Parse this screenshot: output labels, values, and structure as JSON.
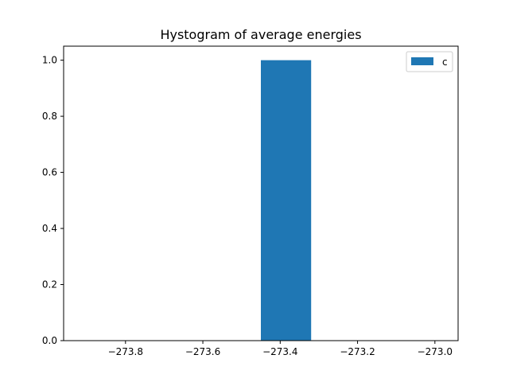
{
  "chart_data": {
    "type": "bar",
    "title": "Hystogram of average energies",
    "xlabel": "",
    "ylabel": "",
    "xlim": [
      -273.96,
      -272.94
    ],
    "ylim": [
      0,
      1.05
    ],
    "xticks": [
      -273.8,
      -273.6,
      -273.4,
      -273.2,
      -273.0
    ],
    "xtick_labels": [
      "−273.8",
      "−273.6",
      "−273.4",
      "−273.2",
      "−273.0"
    ],
    "yticks": [
      0.0,
      0.2,
      0.4,
      0.6,
      0.8,
      1.0
    ],
    "ytick_labels": [
      "0.0",
      "0.2",
      "0.4",
      "0.6",
      "0.8",
      "1.0"
    ],
    "grid": false,
    "legend_position": "top-right",
    "series": [
      {
        "name": "c",
        "color": "#1f77b4",
        "bins": [
          {
            "x0": -273.45,
            "x1": -273.32,
            "value": 1
          }
        ]
      }
    ]
  }
}
